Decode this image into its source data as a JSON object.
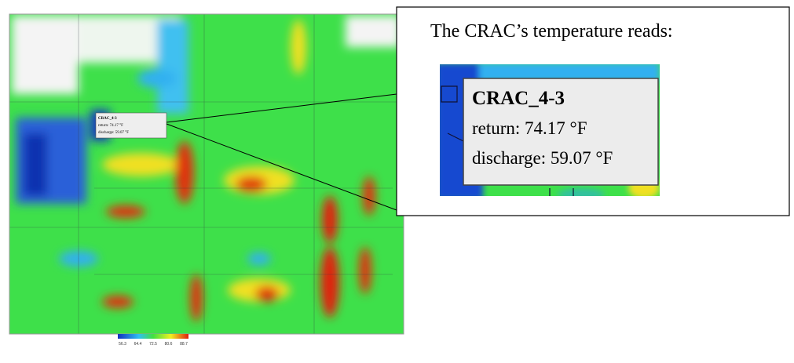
{
  "map": {
    "tooltip": {
      "name": "CRAC_4-3",
      "return": "return: 74.17 °F",
      "discharge": "discharge: 59.07 °F"
    },
    "legend": {
      "ticks": [
        "56.3",
        "64.4",
        "72.5",
        "80.6",
        "88.7"
      ]
    }
  },
  "callout": {
    "heading": "The CRAC’s temperature reads:",
    "tooltip": {
      "name": "CRAC_4-3",
      "return": "return: 74.17 °F",
      "discharge": "discharge: 59.07 °F"
    }
  }
}
